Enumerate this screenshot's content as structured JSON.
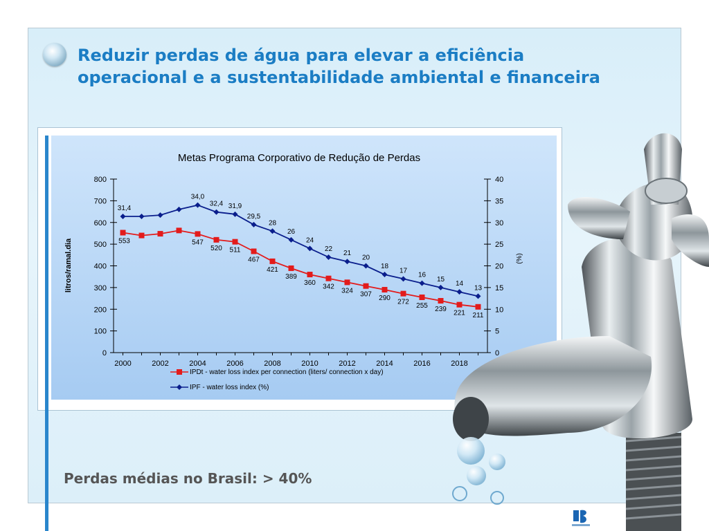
{
  "slide": {
    "title_line1": "Reduzir perdas de água para elevar a eficiência",
    "title_line2": "operacional e a sustentabilidade ambiental e financeira",
    "bottom_text": "Perdas médias no Brasil: > 40%"
  },
  "chart_data": {
    "type": "line",
    "title": "Metas Programa Corporativo de Redução de Perdas",
    "ylabel": "litros/ramal.dia",
    "y2label": "(%)",
    "ylim": [
      0,
      800
    ],
    "y2lim": [
      0,
      40
    ],
    "yticks": [
      0,
      100,
      200,
      300,
      400,
      500,
      600,
      700,
      800
    ],
    "y2ticks": [
      0,
      5,
      10,
      15,
      20,
      25,
      30,
      35,
      40
    ],
    "xlim": [
      1999.5,
      2019.5
    ],
    "xticks": [
      2000,
      2002,
      2004,
      2006,
      2008,
      2010,
      2012,
      2014,
      2016,
      2018
    ],
    "x": [
      2000,
      2001,
      2002,
      2003,
      2004,
      2005,
      2006,
      2007,
      2008,
      2009,
      2010,
      2011,
      2012,
      2013,
      2014,
      2015,
      2016,
      2017,
      2018,
      2019
    ],
    "legend_position": "bottom",
    "series": [
      {
        "name": "IPDt - water loss index per connection (liters/ connection x day)",
        "axis": "left",
        "color": "#e31b1b",
        "marker": "square",
        "values": [
          553,
          540,
          548,
          563,
          547,
          520,
          511,
          467,
          421,
          389,
          360,
          342,
          324,
          307,
          290,
          272,
          255,
          239,
          221,
          211
        ],
        "labels": [
          "553",
          null,
          null,
          null,
          "547",
          "520",
          "511",
          "467",
          "421",
          "389",
          "360",
          "342",
          "324",
          "307",
          "290",
          "272",
          "255",
          "239",
          "221",
          "211"
        ]
      },
      {
        "name": "IPF - water loss index (%)",
        "axis": "right",
        "color": "#0a1e8c",
        "marker": "diamond",
        "values": [
          31.4,
          31.4,
          31.7,
          33.0,
          34.0,
          32.4,
          31.9,
          29.5,
          28,
          26,
          24,
          22,
          21,
          20,
          18,
          17,
          16,
          15,
          14,
          13
        ],
        "labels": [
          "31,4",
          null,
          null,
          null,
          "34,0",
          "32,4",
          "31,9",
          "29,5",
          "28",
          "26",
          "24",
          "22",
          "21",
          "20",
          "18",
          "17",
          "16",
          "15",
          "14",
          "13"
        ]
      }
    ]
  }
}
